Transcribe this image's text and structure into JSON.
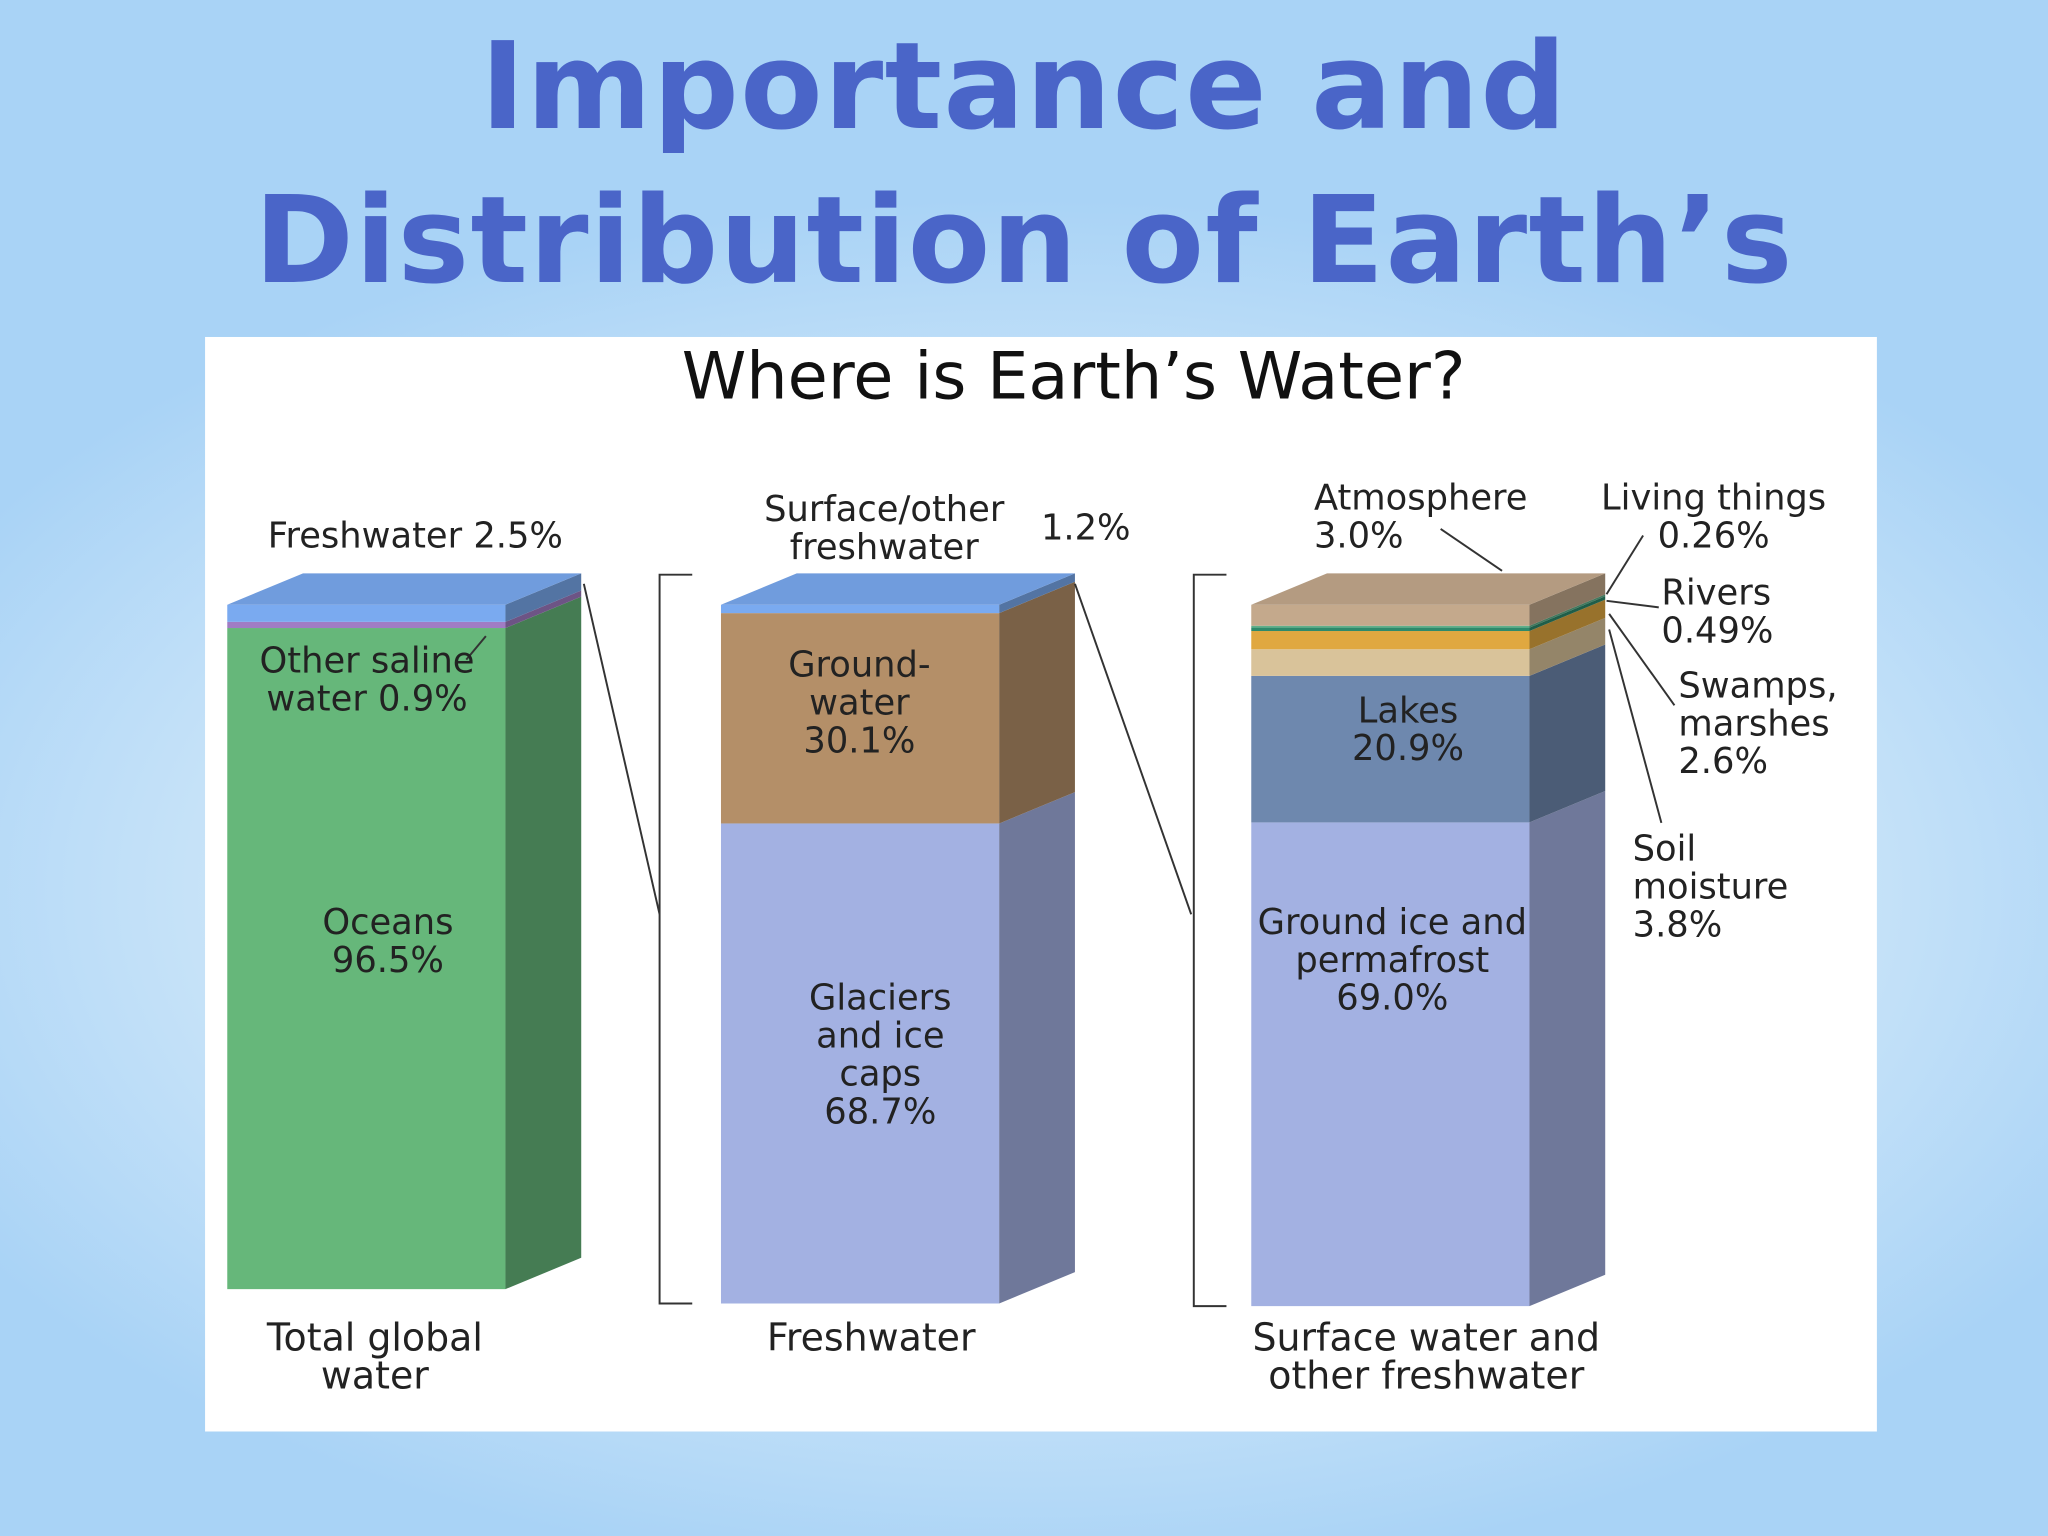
{
  "slide": {
    "title": "Importance and Distribution of Earth’s Water"
  },
  "chart_data": {
    "type": "stacked-3d-columns",
    "title": "Where is Earth’s Water?",
    "columns": [
      {
        "label": "Total global water",
        "segments": [
          {
            "name": "Oceans",
            "value": 96.5,
            "value_label": "96.5%",
            "color": "#66b77a"
          },
          {
            "name": "Other saline water",
            "value": 0.9,
            "value_label": "0.9%",
            "color": "#a07cc4"
          },
          {
            "name": "Freshwater",
            "value": 2.5,
            "value_label": "2.5%",
            "color": "#7aaaf0"
          }
        ]
      },
      {
        "label": "Freshwater",
        "segments": [
          {
            "name": "Glaciers and ice caps",
            "value": 68.7,
            "value_label": "68.7%",
            "color": "#a3b1e2"
          },
          {
            "name": "Ground-water",
            "value": 30.1,
            "value_label": "30.1%",
            "color": "#b48f68"
          },
          {
            "name": "Surface/other freshwater",
            "value": 1.2,
            "value_label": "1.2%",
            "color": "#7aaaf0"
          }
        ]
      },
      {
        "label": "Surface water and other freshwater",
        "segments": [
          {
            "name": "Ground ice and permafrost",
            "value": 69.0,
            "value_label": "69.0%",
            "color": "#a3b1e2"
          },
          {
            "name": "Lakes",
            "value": 20.9,
            "value_label": "20.9%",
            "color": "#6e88ae"
          },
          {
            "name": "Soil moisture",
            "value": 3.8,
            "value_label": "3.8%",
            "color": "#d9c39a"
          },
          {
            "name": "Swamps, marshes",
            "value": 2.6,
            "value_label": "2.6%",
            "color": "#e0a840"
          },
          {
            "name": "Rivers",
            "value": 0.49,
            "value_label": "0.49%",
            "color": "#2e8a6b"
          },
          {
            "name": "Living things",
            "value": 0.26,
            "value_label": "0.26%",
            "color": "#5fb08a"
          },
          {
            "name": "Atmosphere",
            "value": 3.0,
            "value_label": "3.0%",
            "color": "#c4a98c"
          }
        ]
      }
    ]
  }
}
